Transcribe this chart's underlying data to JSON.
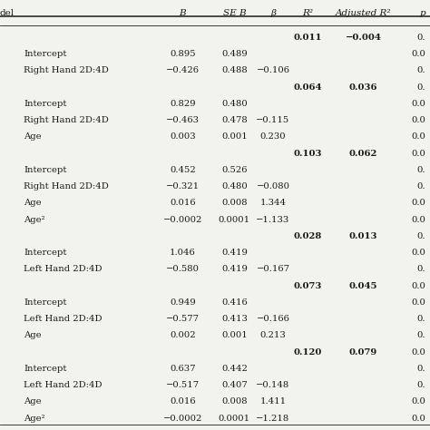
{
  "rows": [
    {
      "indent": 0,
      "label": "",
      "B": "",
      "SEB": "",
      "beta": "",
      "R2": "0.011",
      "adjR2": "−0.004",
      "p": "0."
    },
    {
      "indent": 1,
      "label": "Intercept",
      "B": "0.895",
      "SEB": "0.489",
      "beta": "",
      "R2": "",
      "adjR2": "",
      "p": "0.0"
    },
    {
      "indent": 1,
      "label": "Right Hand 2D:4D",
      "B": "−0.426",
      "SEB": "0.488",
      "beta": "−0.106",
      "R2": "",
      "adjR2": "",
      "p": "0."
    },
    {
      "indent": 0,
      "label": "",
      "B": "",
      "SEB": "",
      "beta": "",
      "R2": "0.064",
      "adjR2": "0.036",
      "p": "0."
    },
    {
      "indent": 1,
      "label": "Intercept",
      "B": "0.829",
      "SEB": "0.480",
      "beta": "",
      "R2": "",
      "adjR2": "",
      "p": "0.0"
    },
    {
      "indent": 1,
      "label": "Right Hand 2D:4D",
      "B": "−0.463",
      "SEB": "0.478",
      "beta": "−0.115",
      "R2": "",
      "adjR2": "",
      "p": "0.0"
    },
    {
      "indent": 1,
      "label": "Age",
      "B": "0.003",
      "SEB": "0.001",
      "beta": "0.230",
      "R2": "",
      "adjR2": "",
      "p": "0.0"
    },
    {
      "indent": 0,
      "label": "",
      "B": "",
      "SEB": "",
      "beta": "",
      "R2": "0.103",
      "adjR2": "0.062",
      "p": "0.0"
    },
    {
      "indent": 1,
      "label": "Intercept",
      "B": "0.452",
      "SEB": "0.526",
      "beta": "",
      "R2": "",
      "adjR2": "",
      "p": "0."
    },
    {
      "indent": 1,
      "label": "Right Hand 2D:4D",
      "B": "−0.321",
      "SEB": "0.480",
      "beta": "−0.080",
      "R2": "",
      "adjR2": "",
      "p": "0."
    },
    {
      "indent": 1,
      "label": "Age",
      "B": "0.016",
      "SEB": "0.008",
      "beta": "1.344",
      "R2": "",
      "adjR2": "",
      "p": "0.0"
    },
    {
      "indent": 1,
      "label": "Age²",
      "B": "−0.0002",
      "SEB": "0.0001",
      "beta": "−1.133",
      "R2": "",
      "adjR2": "",
      "p": "0.0"
    },
    {
      "indent": 0,
      "label": "",
      "B": "",
      "SEB": "",
      "beta": "",
      "R2": "0.028",
      "adjR2": "0.013",
      "p": "0."
    },
    {
      "indent": 1,
      "label": "Intercept",
      "B": "1.046",
      "SEB": "0.419",
      "beta": "",
      "R2": "",
      "adjR2": "",
      "p": "0.0"
    },
    {
      "indent": 1,
      "label": "Left Hand 2D:4D",
      "B": "−0.580",
      "SEB": "0.419",
      "beta": "−0.167",
      "R2": "",
      "adjR2": "",
      "p": "0."
    },
    {
      "indent": 0,
      "label": "",
      "B": "",
      "SEB": "",
      "beta": "",
      "R2": "0.073",
      "adjR2": "0.045",
      "p": "0.0"
    },
    {
      "indent": 1,
      "label": "Intercept",
      "B": "0.949",
      "SEB": "0.416",
      "beta": "",
      "R2": "",
      "adjR2": "",
      "p": "0.0"
    },
    {
      "indent": 1,
      "label": "Left Hand 2D:4D",
      "B": "−0.577",
      "SEB": "0.413",
      "beta": "−0.166",
      "R2": "",
      "adjR2": "",
      "p": "0."
    },
    {
      "indent": 1,
      "label": "Age",
      "B": "0.002",
      "SEB": "0.001",
      "beta": "0.213",
      "R2": "",
      "adjR2": "",
      "p": "0."
    },
    {
      "indent": 0,
      "label": "",
      "B": "",
      "SEB": "",
      "beta": "",
      "R2": "0.120",
      "adjR2": "0.079",
      "p": "0.0"
    },
    {
      "indent": 1,
      "label": "Intercept",
      "B": "0.637",
      "SEB": "0.442",
      "beta": "",
      "R2": "",
      "adjR2": "",
      "p": "0."
    },
    {
      "indent": 1,
      "label": "Left Hand 2D:4D",
      "B": "−0.517",
      "SEB": "0.407",
      "beta": "−0.148",
      "R2": "",
      "adjR2": "",
      "p": "0."
    },
    {
      "indent": 1,
      "label": "Age",
      "B": "0.016",
      "SEB": "0.008",
      "beta": "1.411",
      "R2": "",
      "adjR2": "",
      "p": "0.0"
    },
    {
      "indent": 1,
      "label": "Age²",
      "B": "−0.0002",
      "SEB": "0.0001",
      "beta": "−1.218",
      "R2": "",
      "adjR2": "",
      "p": "0.0"
    }
  ],
  "col_x": {
    "label": 0.0,
    "B": 0.425,
    "SEB": 0.545,
    "beta": 0.635,
    "R2": 0.715,
    "adjR2": 0.845,
    "p": 0.99
  },
  "bg_color": "#f2f2ee",
  "text_color": "#1a1a1a",
  "font_size": 7.2,
  "header_font_size": 7.5
}
